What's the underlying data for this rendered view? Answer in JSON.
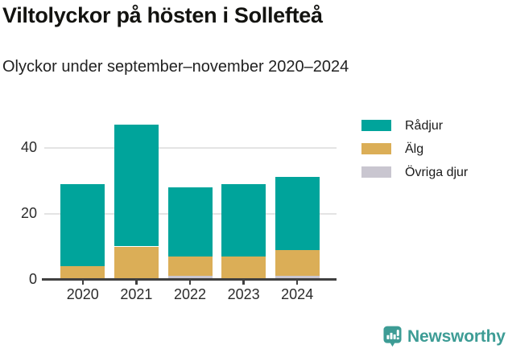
{
  "header": {
    "title": "Viltolyckor på hösten i Sollefteå",
    "subtitle": "Olyckor under september–november 2020–2024"
  },
  "chart_data": {
    "type": "bar",
    "stacked": true,
    "title": "Viltolyckor på hösten i Sollefteå",
    "subtitle": "Olyckor under september–november 2020–2024",
    "categories": [
      "2020",
      "2021",
      "2022",
      "2023",
      "2024"
    ],
    "series": [
      {
        "name": "Rådjur",
        "color": "#00a49b",
        "values": [
          25,
          37,
          21,
          22,
          22
        ]
      },
      {
        "name": "Älg",
        "color": "#dbae57",
        "values": [
          4,
          10,
          6,
          7,
          8
        ]
      },
      {
        "name": "Övriga djur",
        "color": "#c9c6d0",
        "values": [
          0,
          0,
          1,
          0,
          1
        ]
      }
    ],
    "stack_order_bottom_to_top": [
      "Övriga djur",
      "Älg",
      "Rådjur"
    ],
    "totals": [
      29,
      47,
      28,
      29,
      31
    ],
    "xlabel": "",
    "ylabel": "",
    "yticks": [
      0,
      20,
      40
    ],
    "ylim": [
      0,
      53
    ],
    "grid": true,
    "legend_position": "right"
  },
  "footer": {
    "brand": "Newsworthy",
    "logo": "newsworthy-speech-bubble-bar-chart-icon"
  },
  "colors": {
    "axis": "#404040",
    "grid": "#e4e4e4",
    "tick_text": "#2b2b2b",
    "brand_teal": "#3d9c95",
    "background": "#ffffff"
  }
}
